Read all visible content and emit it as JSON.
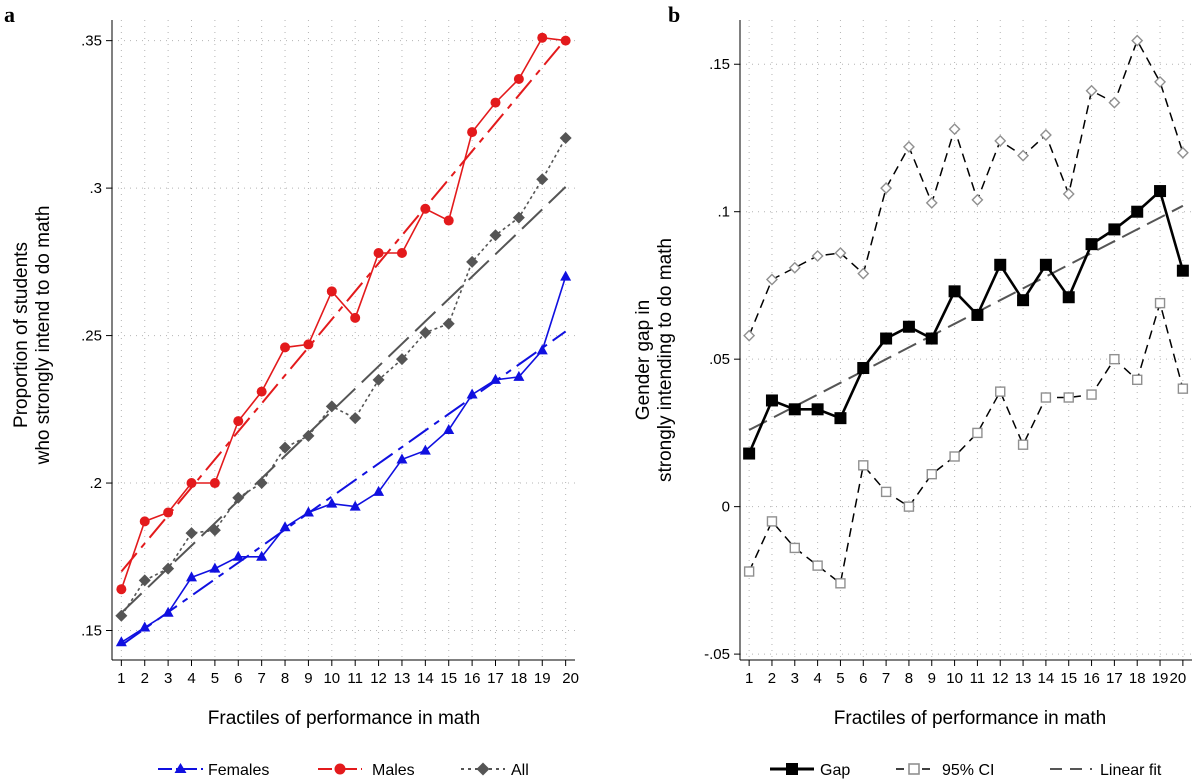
{
  "figure": {
    "panels": [
      {
        "label": "a",
        "chart_data": {
          "type": "line",
          "xlabel": "Fractiles of performance in math",
          "ylabel": [
            "Proportion of students",
            "who strongly intend to do math"
          ],
          "x": [
            1,
            2,
            3,
            4,
            5,
            6,
            7,
            8,
            9,
            10,
            11,
            12,
            13,
            14,
            15,
            16,
            17,
            18,
            19,
            20
          ],
          "xlim": [
            0.6,
            20.4
          ],
          "ylim": [
            0.14,
            0.357
          ],
          "yticks": [
            0.15,
            0.2,
            0.25,
            0.3,
            0.35
          ],
          "ytick_labels": [
            ".15",
            ".2",
            ".25",
            ".3",
            ".35"
          ],
          "grid": true,
          "legend_position": "bottom",
          "series": [
            {
              "name": "Females",
              "color": "#1010e0",
              "marker": "triangle",
              "values": [
                0.146,
                0.151,
                0.156,
                0.168,
                0.171,
                0.175,
                0.175,
                0.185,
                0.19,
                0.193,
                0.192,
                0.197,
                0.208,
                0.211,
                0.218,
                0.23,
                0.235,
                0.236,
                0.245,
                0.27
              ],
              "fit": [
                0.145,
                0.1506,
                0.1562,
                0.1618,
                0.1674,
                0.173,
                0.1786,
                0.1842,
                0.1898,
                0.1954,
                0.201,
                0.2066,
                0.2122,
                0.2178,
                0.2234,
                0.229,
                0.2346,
                0.2402,
                0.2458,
                0.2514
              ]
            },
            {
              "name": "Males",
              "color": "#e31a1c",
              "marker": "circle",
              "values": [
                0.164,
                0.187,
                0.19,
                0.2,
                0.2,
                0.221,
                0.231,
                0.246,
                0.247,
                0.265,
                0.256,
                0.278,
                0.278,
                0.293,
                0.289,
                0.319,
                0.329,
                0.337,
                0.351,
                0.35
              ],
              "fit": [
                0.17,
                0.1795,
                0.189,
                0.1985,
                0.208,
                0.2175,
                0.227,
                0.2365,
                0.246,
                0.2555,
                0.265,
                0.2745,
                0.284,
                0.2935,
                0.303,
                0.3125,
                0.322,
                0.3315,
                0.341,
                0.3505
              ]
            },
            {
              "name": "All",
              "color": "#555555",
              "marker": "diamond",
              "values": [
                0.155,
                0.167,
                0.171,
                0.183,
                0.184,
                0.195,
                0.2,
                0.212,
                0.216,
                0.226,
                0.222,
                0.235,
                0.242,
                0.251,
                0.254,
                0.275,
                0.284,
                0.29,
                0.303,
                0.317
              ],
              "fit": [
                0.156,
                0.1636,
                0.1712,
                0.1788,
                0.1864,
                0.194,
                0.2016,
                0.2092,
                0.2168,
                0.2244,
                0.232,
                0.2396,
                0.2472,
                0.2548,
                0.2624,
                0.27,
                0.2776,
                0.2852,
                0.2928,
                0.3004
              ]
            }
          ]
        }
      },
      {
        "label": "b",
        "chart_data": {
          "type": "line",
          "xlabel": "Fractiles of performance in math",
          "ylabel": [
            "Gender gap in",
            "strongly intending to do math"
          ],
          "x": [
            1,
            2,
            3,
            4,
            5,
            6,
            7,
            8,
            9,
            10,
            11,
            12,
            13,
            14,
            15,
            16,
            17,
            18,
            19,
            20
          ],
          "xlim": [
            0.6,
            20.4
          ],
          "ylim": [
            -0.052,
            0.165
          ],
          "yticks": [
            -0.05,
            0,
            0.05,
            0.1,
            0.15
          ],
          "ytick_labels": [
            "-.05",
            "0",
            ".05",
            ".1",
            ".15"
          ],
          "grid": true,
          "legend_position": "bottom",
          "series": [
            {
              "name": "Gap",
              "color": "#000000",
              "values": [
                0.018,
                0.036,
                0.033,
                0.033,
                0.03,
                0.047,
                0.057,
                0.061,
                0.057,
                0.073,
                0.065,
                0.082,
                0.07,
                0.082,
                0.071,
                0.089,
                0.094,
                0.1,
                0.107,
                0.08
              ]
            },
            {
              "name": "95% CI",
              "color": "#909090",
              "upper": [
                0.058,
                0.077,
                0.081,
                0.085,
                0.086,
                0.079,
                0.108,
                0.122,
                0.103,
                0.128,
                0.104,
                0.124,
                0.119,
                0.126,
                0.106,
                0.141,
                0.137,
                0.158,
                0.144,
                0.12
              ],
              "lower": [
                -0.022,
                -0.005,
                -0.014,
                -0.02,
                -0.026,
                0.014,
                0.005,
                0.0,
                0.011,
                0.017,
                0.025,
                0.039,
                0.021,
                0.037,
                0.037,
                0.038,
                0.05,
                0.043,
                0.069,
                0.04
              ]
            },
            {
              "name": "Linear fit",
              "color": "#555555",
              "values": [
                0.026,
                0.03,
                0.034,
                0.038,
                0.042,
                0.046,
                0.05,
                0.054,
                0.058,
                0.062,
                0.066,
                0.07,
                0.074,
                0.078,
                0.082,
                0.086,
                0.09,
                0.094,
                0.098,
                0.102
              ]
            }
          ]
        }
      }
    ]
  }
}
